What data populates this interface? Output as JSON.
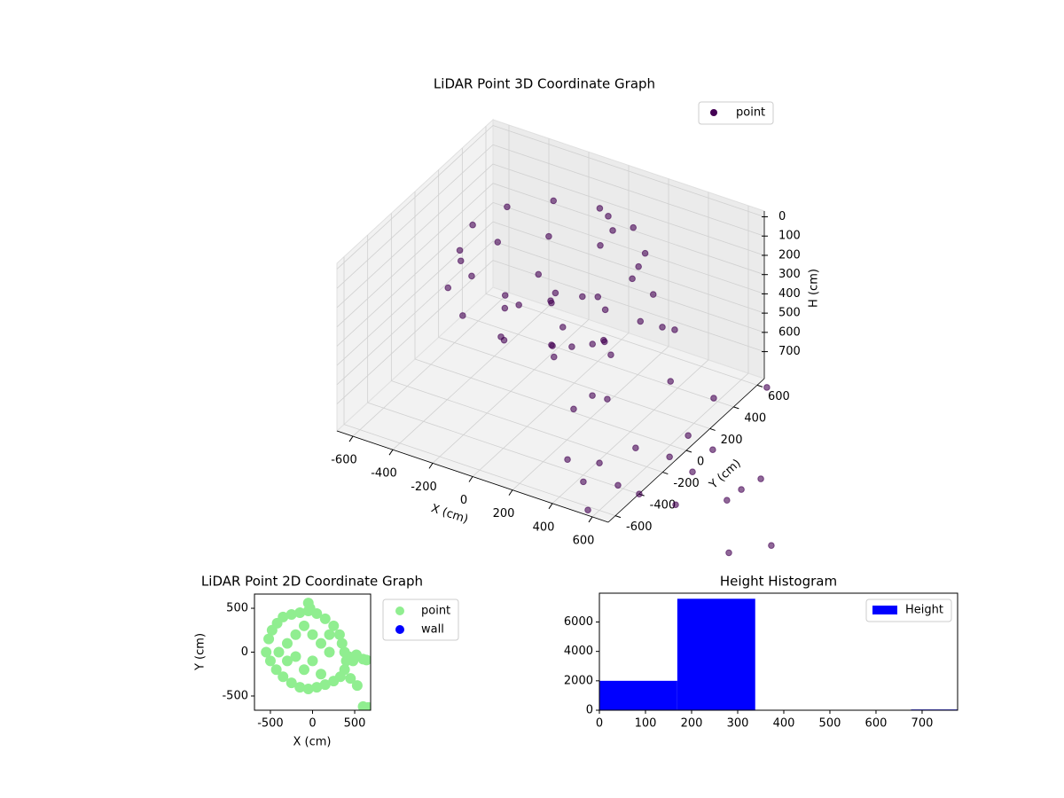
{
  "chart_data": [
    {
      "type": "scatter3d",
      "title": "LiDAR Point 3D Coordinate Graph",
      "x_label": "X (cm)",
      "y_label": "Y (cm)",
      "z_label": "H (cm)",
      "xlim": [
        -680,
        680
      ],
      "ylim": [
        -660,
        660
      ],
      "zlim": [
        -30,
        840
      ],
      "z_inverted": true,
      "xticks": [
        -600,
        -400,
        -200,
        0,
        200,
        400,
        600
      ],
      "yticks": [
        -600,
        -400,
        -200,
        0,
        200,
        400,
        600
      ],
      "zticks": [
        0,
        100,
        200,
        300,
        400,
        500,
        600,
        700
      ],
      "legend": "upper right",
      "series": [
        {
          "name": "point",
          "color": "#440154",
          "x": [
            350,
            296,
            150,
            -50,
            -250,
            -396,
            -450,
            -396,
            -250,
            -50,
            150,
            296,
            450,
            390,
            225,
            0,
            -225,
            -390,
            -450,
            -390,
            -225,
            0,
            225,
            390,
            300,
            175,
            -75,
            -200,
            -75,
            175,
            0,
            100,
            -100,
            -150,
            150,
            832,
            1402,
            1275,
            1136,
            1107,
            1097,
            965,
            572,
            712,
            599,
            458,
            311,
            442,
            515,
            675,
            819,
            658,
            805,
            603,
            454,
            209,
            224,
            293,
            64,
            146,
            211,
            283,
            400,
            456,
            28,
            63
          ],
          "y": [
            100,
            300,
            446,
            500,
            446,
            300,
            100,
            -100,
            -246,
            -300,
            -246,
            -100,
            0,
            210,
            364,
            420,
            364,
            210,
            0,
            -210,
            -364,
            -420,
            -364,
            -210,
            -50,
            167,
            167,
            -50,
            -267,
            -267,
            0,
            100,
            -100,
            150,
            -150,
            425,
            -499,
            -644,
            -139,
            -255,
            -360,
            -571,
            -650,
            -452,
            -441,
            -496,
            -382,
            -333,
            -150,
            -133,
            -182,
            53,
            13,
            362,
            248,
            -158,
            -25,
            -15,
            -101,
            -67,
            -2,
            32,
            270,
            280,
            440,
            419
          ],
          "z": [
            120,
            120,
            120,
            120,
            120,
            120,
            120,
            120,
            120,
            120,
            120,
            120,
            250,
            250,
            250,
            250,
            250,
            250,
            250,
            250,
            250,
            250,
            250,
            250,
            380,
            380,
            380,
            380,
            380,
            380,
            300,
            300,
            300,
            300,
            300,
            700,
            800,
            800,
            750,
            750,
            750,
            700,
            820,
            800,
            800,
            800,
            800,
            800,
            800,
            800,
            800,
            800,
            800,
            800,
            700,
            700,
            700,
            700,
            450,
            450,
            450,
            500,
            450,
            450,
            100,
            150
          ]
        }
      ]
    },
    {
      "type": "scatter",
      "title": "LiDAR Point 2D Coordinate Graph",
      "x_label": "X (cm)",
      "y_label": "Y (cm)",
      "xlim": [
        -689,
        689
      ],
      "ylim": [
        -662,
        662
      ],
      "xticks": [
        -500,
        0,
        500
      ],
      "yticks": [
        -500,
        0,
        500
      ],
      "legend": "outside right",
      "series": [
        {
          "name": "point",
          "color": "#90ee90",
          "x": [
            -550,
            -520,
            -480,
            -420,
            -350,
            -250,
            -150,
            -50,
            50,
            150,
            250,
            320,
            350,
            380,
            400,
            380,
            330,
            250,
            150,
            50,
            -50,
            -150,
            -250,
            -350,
            -430,
            -500,
            -300,
            -200,
            -100,
            0,
            100,
            200,
            0,
            -100,
            100,
            -300,
            -400,
            200,
            -200,
            -50,
            -30,
            430,
            480,
            520,
            600,
            640,
            530,
            600,
            660,
            450
          ],
          "y": [
            0,
            150,
            250,
            330,
            400,
            430,
            450,
            470,
            440,
            380,
            300,
            200,
            100,
            0,
            -100,
            -200,
            -280,
            -330,
            -370,
            -400,
            -420,
            -400,
            -350,
            -280,
            -200,
            -100,
            100,
            200,
            300,
            200,
            100,
            0,
            -100,
            -200,
            -250,
            -100,
            0,
            200,
            -50,
            560,
            500,
            -50,
            -100,
            -30,
            -80,
            -90,
            -380,
            -620,
            -630,
            -300
          ]
        },
        {
          "name": "wall",
          "color": "#0000ff",
          "x": [],
          "y": []
        }
      ]
    },
    {
      "type": "histogram",
      "title": "Height Histogram",
      "bins": [
        0,
        169,
        338,
        507,
        676,
        777
      ],
      "name": "Height",
      "color": "#0000ff",
      "values": [
        2000,
        7580,
        0,
        0,
        50
      ],
      "xlim": [
        0,
        777
      ],
      "ylim": [
        0,
        7960
      ],
      "xticks": [
        0,
        100,
        200,
        300,
        400,
        500,
        600,
        700
      ],
      "yticks": [
        0,
        2000,
        4000,
        6000
      ],
      "legend": "upper right"
    }
  ]
}
